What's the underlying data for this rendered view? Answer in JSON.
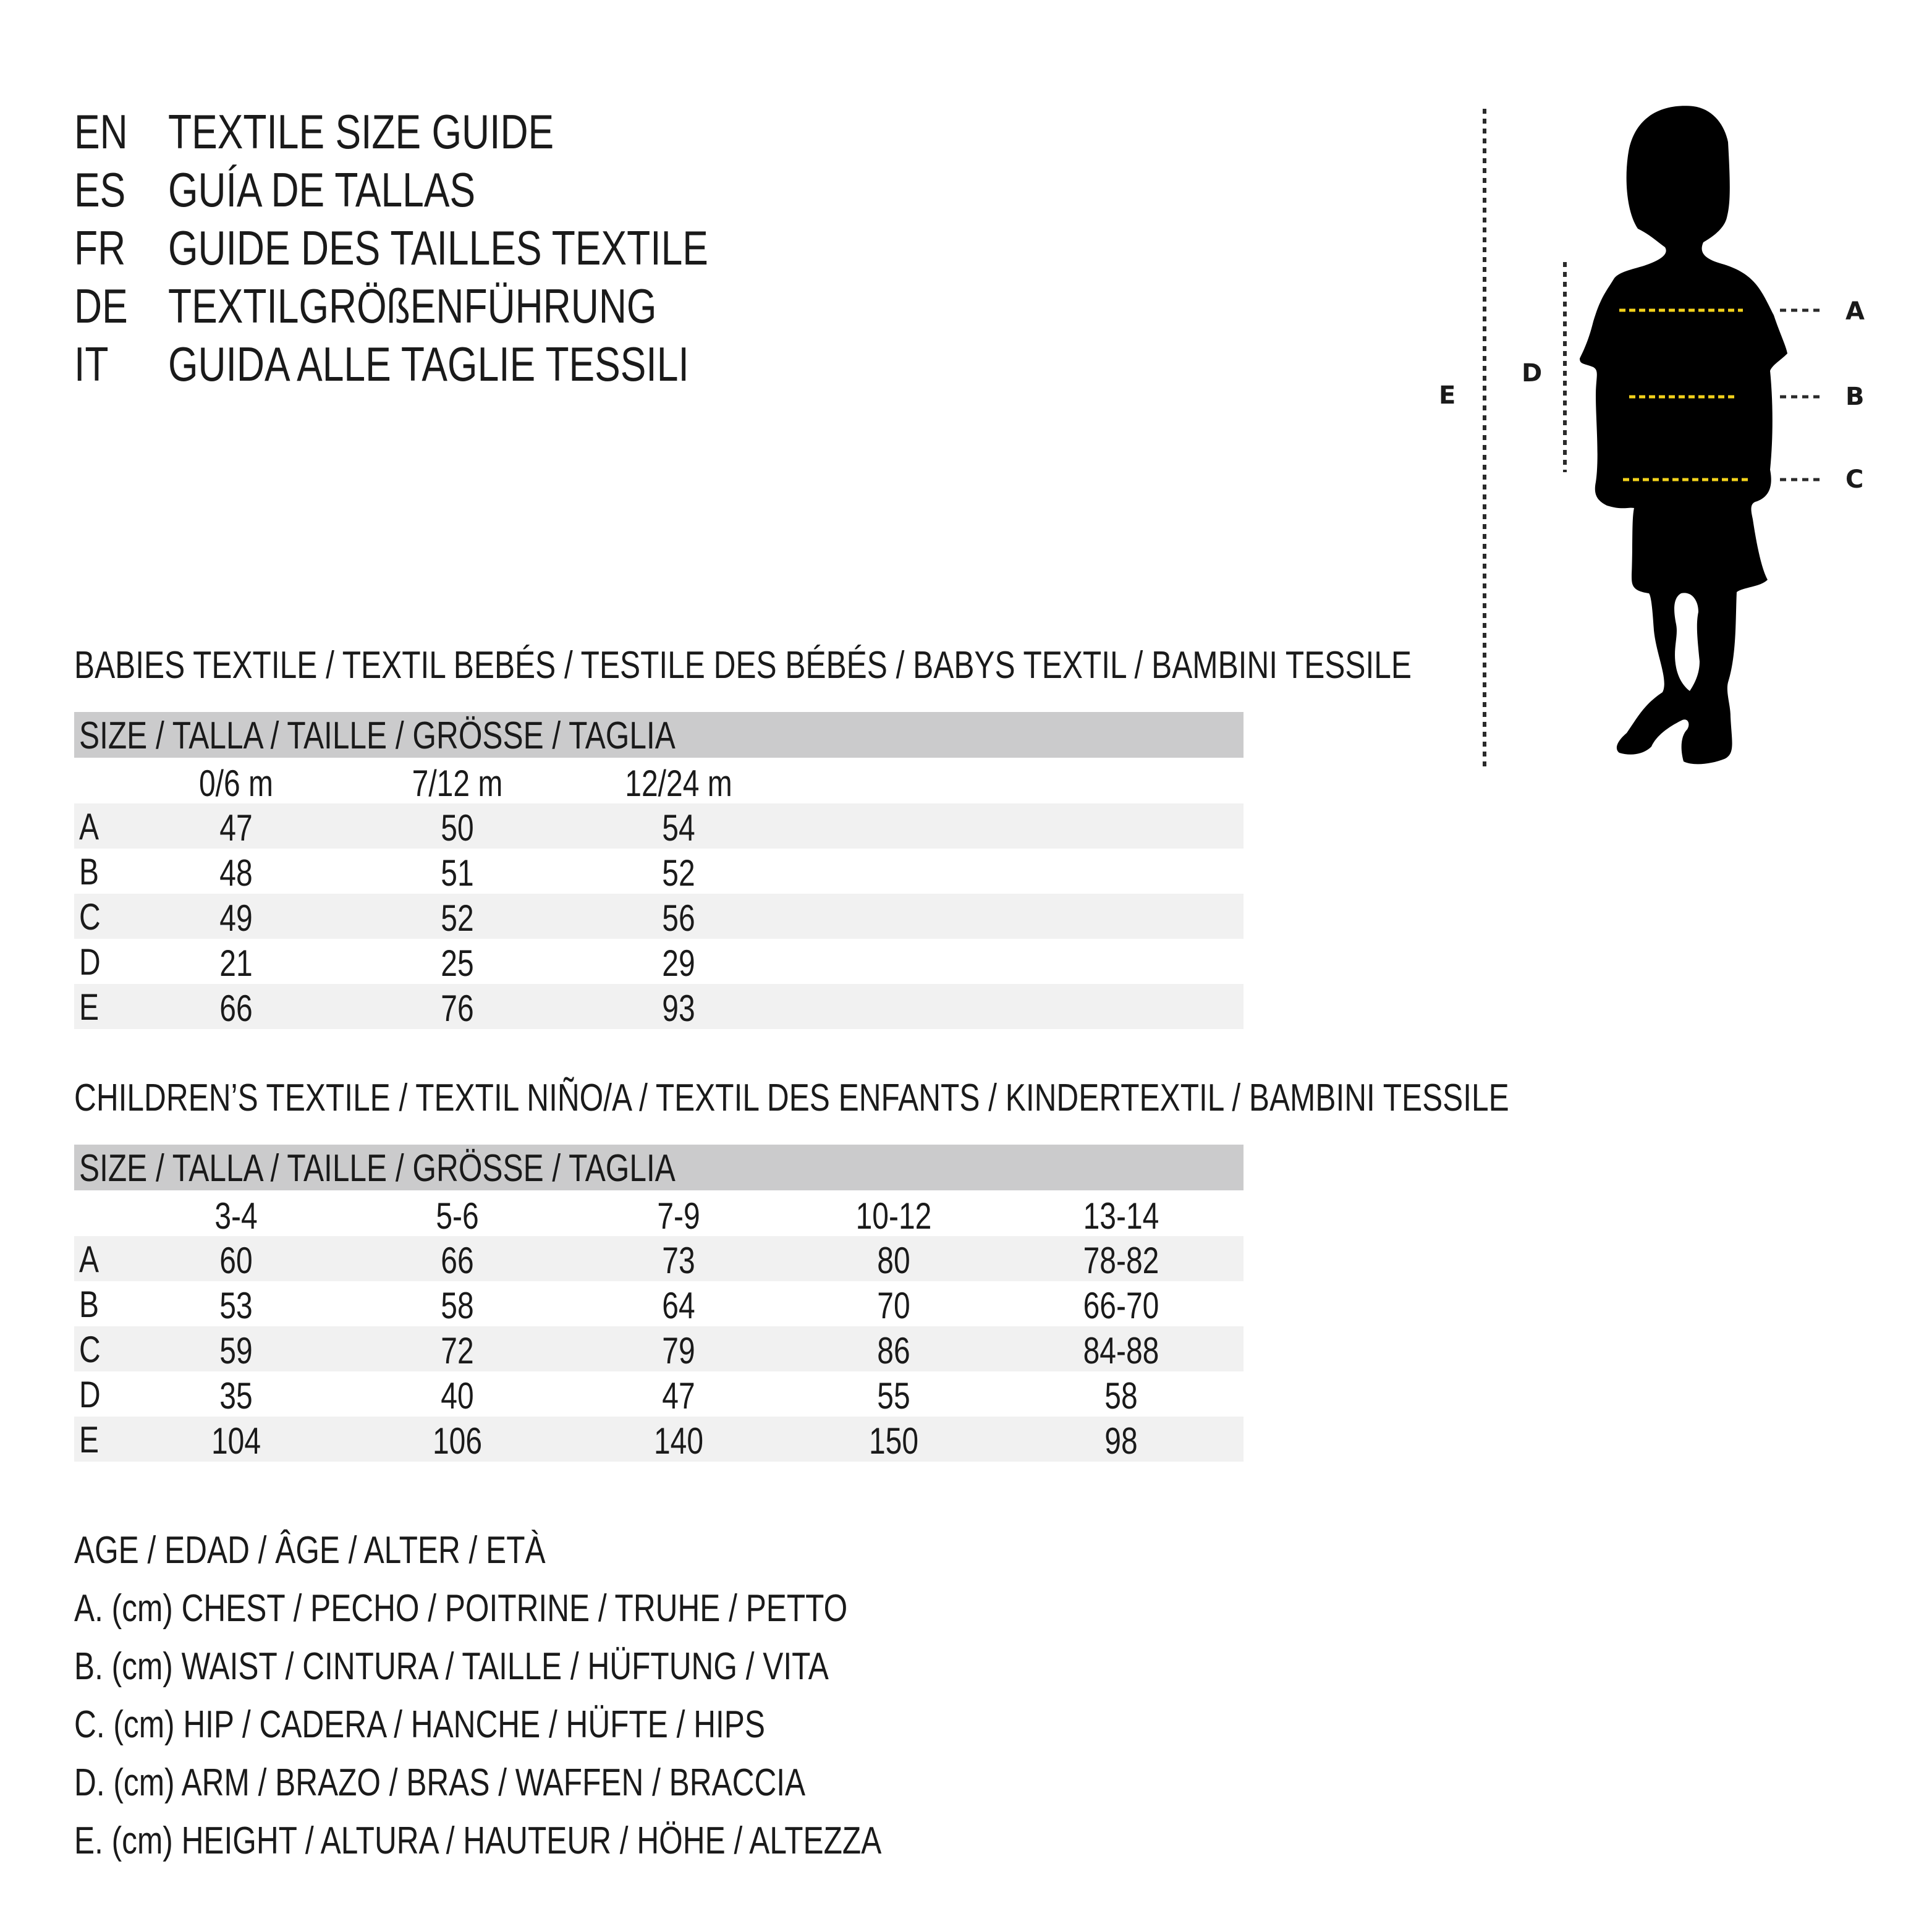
{
  "titles": [
    {
      "code": "EN",
      "text": "TEXTILE SIZE GUIDE"
    },
    {
      "code": "ES",
      "text": "GUÍA DE TALLAS"
    },
    {
      "code": "FR",
      "text": "GUIDE DES TAILLES TEXTILE"
    },
    {
      "code": "DE",
      "text": "TEXTILGRÖßENFÜHRUNG"
    },
    {
      "code": "IT",
      "text": "GUIDA ALLE TAGLIE TESSILI"
    }
  ],
  "babies": {
    "heading": "BABIES TEXTILE / TEXTIL BEBÉS / TESTILE DES BÉBÉS / BABYS TEXTIL / BAMBINI TESSILE",
    "size_header": "SIZE / TALLA / TAILLE / GRÖSSE / TAGLIA",
    "columns": [
      "0/6 m",
      "7/12 m",
      "12/24 m"
    ],
    "rows": [
      {
        "label": "A",
        "values": [
          "47",
          "50",
          "54"
        ]
      },
      {
        "label": "B",
        "values": [
          "48",
          "51",
          "52"
        ]
      },
      {
        "label": "C",
        "values": [
          "49",
          "52",
          "56"
        ]
      },
      {
        "label": "D",
        "values": [
          "21",
          "25",
          "29"
        ]
      },
      {
        "label": "E",
        "values": [
          "66",
          "76",
          "93"
        ]
      }
    ]
  },
  "children": {
    "heading": "CHILDREN’S TEXTILE / TEXTIL NIÑO/A / TEXTIL DES ENFANTS / KINDERTEXTIL / BAMBINI TESSILE",
    "size_header": "SIZE / TALLA / TAILLE / GRÖSSE / TAGLIA",
    "columns": [
      "3-4",
      "5-6",
      "7-9",
      "10-12",
      "13-14"
    ],
    "rows": [
      {
        "label": "A",
        "values": [
          "60",
          "66",
          "73",
          "80",
          "78-82"
        ]
      },
      {
        "label": "B",
        "values": [
          "53",
          "58",
          "64",
          "70",
          "66-70"
        ]
      },
      {
        "label": "C",
        "values": [
          "59",
          "72",
          "79",
          "86",
          "84-88"
        ]
      },
      {
        "label": "D",
        "values": [
          "35",
          "40",
          "47",
          "55",
          "58"
        ]
      },
      {
        "label": "E",
        "values": [
          "104",
          "106",
          "140",
          "150",
          "98"
        ]
      }
    ]
  },
  "legend": [
    "AGE / EDAD / ÂGE / ALTER / ETÀ",
    "A. (cm) CHEST / PECHO / POITRINE / TRUHE / PETTO",
    "B. (cm) WAIST / CINTURA / TAILLE / HÜFTUNG / VITA",
    "C. (cm) HIP / CADERA / HANCHE / HÜFTE / HIPS",
    "D. (cm) ARM / BRAZO / BRAS / WAFFEN / BRACCIA",
    "E. (cm) HEIGHT / ALTURA / HAUTEUR / HÖHE / ALTEZZA"
  ],
  "figure": {
    "labels": {
      "a": "A",
      "b": "B",
      "c": "C",
      "d": "D",
      "e": "E"
    },
    "colors": {
      "silhouette": "#000000",
      "measure_line": "#f2d11b",
      "guide_line": "#2a2a2a"
    }
  }
}
